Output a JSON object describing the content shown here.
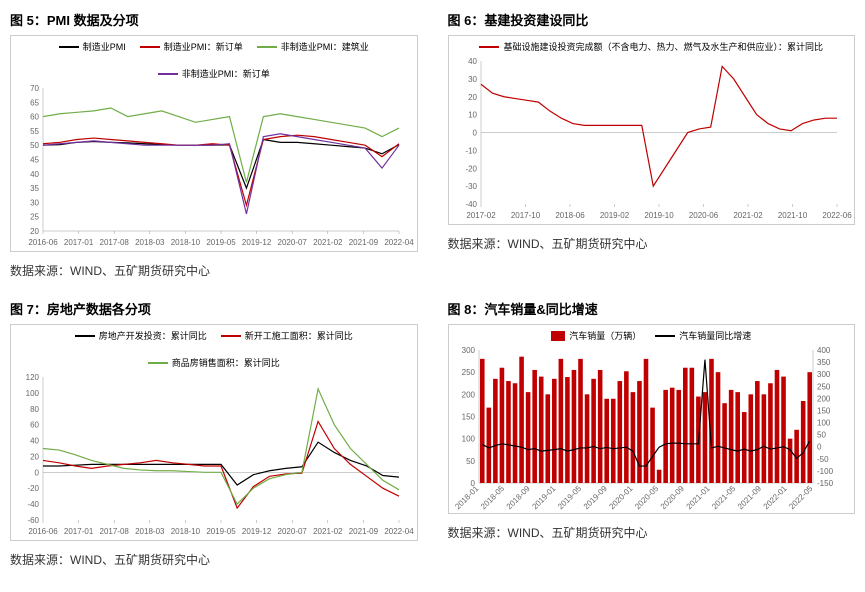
{
  "charts": [
    {
      "title": "图 5：PMI 数据及分项",
      "source": "数据来源：WIND、五矿期货研究中心",
      "legend": [
        {
          "label": "制造业PMI",
          "color": "#000000"
        },
        {
          "label": "制造业PMI：新订单",
          "color": "#c00000"
        },
        {
          "label": "非制造业PMI：建筑业",
          "color": "#70ad47"
        },
        {
          "label": "非制造业PMI：新订单",
          "color": "#7030a0"
        }
      ],
      "ylim": [
        20,
        70
      ],
      "ytick_step": 5,
      "x_labels": [
        "2016-06",
        "2017-01",
        "2017-08",
        "2018-03",
        "2018-10",
        "2019-05",
        "2019-12",
        "2020-07",
        "2021-02",
        "2021-09",
        "2022-04"
      ],
      "series": [
        {
          "color": "#000000",
          "values": [
            50,
            50.2,
            51,
            51.3,
            51,
            50.8,
            50.5,
            50.2,
            50,
            50,
            50,
            50.1,
            35,
            52,
            51,
            51,
            50.5,
            50,
            49.5,
            49,
            47,
            50.2
          ]
        },
        {
          "color": "#c00000",
          "values": [
            50.5,
            51,
            52,
            52.5,
            52,
            51.5,
            51,
            50.5,
            50,
            50,
            50.5,
            50,
            29,
            52,
            53,
            53.5,
            53,
            52,
            51,
            50,
            46,
            50.5
          ]
        },
        {
          "color": "#70ad47",
          "values": [
            60,
            61,
            61.5,
            62,
            63,
            60,
            61,
            62,
            60,
            58,
            59,
            60,
            37,
            60,
            61,
            60,
            59,
            58,
            57,
            56,
            53,
            56
          ]
        },
        {
          "color": "#7030a0",
          "values": [
            50,
            50.5,
            51,
            51.5,
            51,
            50.5,
            50,
            50,
            50,
            50,
            50,
            50.5,
            26,
            53,
            54,
            53,
            52,
            51,
            50,
            49,
            42,
            50
          ]
        }
      ]
    },
    {
      "title": "图 6：基建投资建设同比",
      "source": "数据来源：WIND、五矿期货研究中心",
      "legend": [
        {
          "label": "基础设施建设投资完成额（不含电力、热力、燃气及水生产和供应业）：累计同比",
          "color": "#c00000"
        }
      ],
      "ylim": [
        -40,
        40
      ],
      "ytick_step": 10,
      "x_labels": [
        "2017-02",
        "2017-10",
        "2018-06",
        "2019-02",
        "2019-10",
        "2020-06",
        "2021-02",
        "2021-10",
        "2022-06"
      ],
      "series": [
        {
          "color": "#c00000",
          "values": [
            27,
            22,
            20,
            19,
            18,
            17,
            12,
            8,
            5,
            4,
            4,
            4,
            4,
            4,
            4,
            -30,
            -20,
            -10,
            0,
            2,
            3,
            37,
            30,
            20,
            10,
            5,
            2,
            1,
            5,
            7,
            8,
            8
          ]
        }
      ]
    },
    {
      "title": "图 7：房地产数据各分项",
      "source": "数据来源：WIND、五矿期货研究中心",
      "legend": [
        {
          "label": "房地产开发投资：累计同比",
          "color": "#000000"
        },
        {
          "label": "新开工施工面积：累计同比",
          "color": "#c00000"
        },
        {
          "label": "商品房销售面积：累计同比",
          "color": "#70ad47"
        }
      ],
      "ylim": [
        -60,
        120
      ],
      "ytick_step": 20,
      "x_labels": [
        "2016-06",
        "2017-01",
        "2017-08",
        "2018-03",
        "2018-10",
        "2019-05",
        "2019-12",
        "2020-07",
        "2021-02",
        "2021-09",
        "2022-04"
      ],
      "series": [
        {
          "color": "#000000",
          "values": [
            8,
            8,
            9,
            10,
            10,
            10,
            10,
            10,
            10,
            10,
            10,
            10,
            -16,
            -3,
            2,
            5,
            7,
            38,
            25,
            15,
            8,
            -4,
            -6
          ]
        },
        {
          "color": "#c00000",
          "values": [
            15,
            12,
            8,
            5,
            8,
            10,
            12,
            15,
            12,
            10,
            8,
            8,
            -45,
            -18,
            -5,
            -2,
            -1,
            64,
            30,
            10,
            -5,
            -20,
            -30
          ]
        },
        {
          "color": "#70ad47",
          "values": [
            30,
            28,
            22,
            15,
            10,
            5,
            3,
            2,
            2,
            1,
            0,
            0,
            -40,
            -20,
            -8,
            -3,
            0,
            105,
            60,
            30,
            10,
            -10,
            -22
          ]
        }
      ]
    },
    {
      "title": "图 8：汽车销量&同比增速",
      "source": "数据来源：WIND、五矿期货研究中心",
      "legend_bars": [
        {
          "label": "汽车销量（万辆）",
          "color": "#c00000"
        }
      ],
      "legend_lines": [
        {
          "label": "汽车销量同比增速",
          "color": "#000000"
        }
      ],
      "ylim_left": [
        0,
        300
      ],
      "ytick_step_left": 50,
      "ylim_right": [
        -150,
        400
      ],
      "ytick_step_right": 50,
      "x_labels": [
        "2018-01",
        "2018-05",
        "2018-09",
        "2019-01",
        "2019-05",
        "2019-09",
        "2020-01",
        "2020-05",
        "2020-09",
        "2021-01",
        "2021-05",
        "2021-09",
        "2022-01",
        "2022-05"
      ],
      "bars": [
        280,
        170,
        235,
        260,
        230,
        225,
        285,
        205,
        255,
        240,
        200,
        235,
        280,
        239,
        255,
        280,
        200,
        235,
        255,
        190,
        190,
        230,
        252,
        205,
        230,
        280,
        170,
        30,
        210,
        215,
        210,
        260,
        260,
        195,
        205,
        280,
        250,
        180,
        210,
        205,
        160,
        200,
        230,
        200,
        225,
        255,
        240,
        100,
        120,
        185,
        250
      ],
      "line": [
        10,
        -5,
        5,
        12,
        8,
        3,
        -2,
        -12,
        -8,
        -18,
        -15,
        -12,
        -8,
        -18,
        -12,
        -5,
        -5,
        1,
        -8,
        -3,
        -8,
        -5,
        -2,
        -18,
        -80,
        -80,
        -40,
        -2,
        12,
        15,
        15,
        12,
        12,
        12,
        360,
        -5,
        2,
        -5,
        -12,
        -18,
        -10,
        -18,
        -12,
        2,
        -10,
        -5,
        0,
        -12,
        -48,
        -25,
        25
      ]
    }
  ]
}
